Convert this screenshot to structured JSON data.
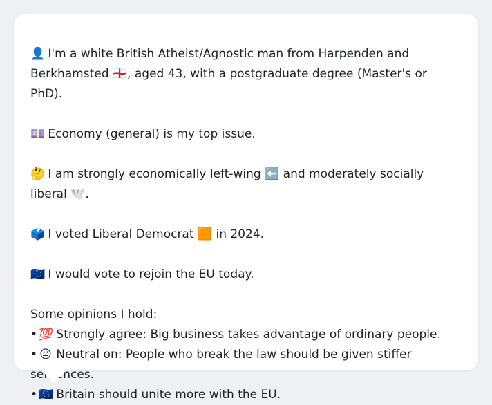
{
  "card": {
    "paragraphs": [
      {
        "emoji": "👤",
        "text": "I'm a white British Atheist/Agnostic man from Harpenden and Berkhamsted 🏴󠁧󠁢󠁥󠁮󠁧󠁿, aged 43, with a postgraduate degree (Master's or PhD)."
      },
      {
        "emoji": "💷",
        "text": "Economy (general) is my top issue."
      },
      {
        "emoji": "🤔",
        "text": "I am strongly economically left-wing ⬅️ and moderately socially liberal 🕊️."
      },
      {
        "emoji": "🗳️",
        "text": "I voted Liberal Democrat 🟧 in 2024."
      },
      {
        "emoji": "🇪🇺",
        "text": "I would vote to rejoin the EU today."
      }
    ],
    "opinions_heading": "Some opinions I hold:",
    "opinions": [
      {
        "bullet": "•",
        "emoji": "💯",
        "text": "Strongly agree: Big business takes advantage of ordinary people."
      },
      {
        "bullet": "•",
        "emoji": "😐",
        "text": "Neutral on: People who break the law should be given stiffer sentences."
      },
      {
        "bullet": "•",
        "emoji": "🇪🇺",
        "text": "Britain should unite more with the EU."
      }
    ]
  }
}
